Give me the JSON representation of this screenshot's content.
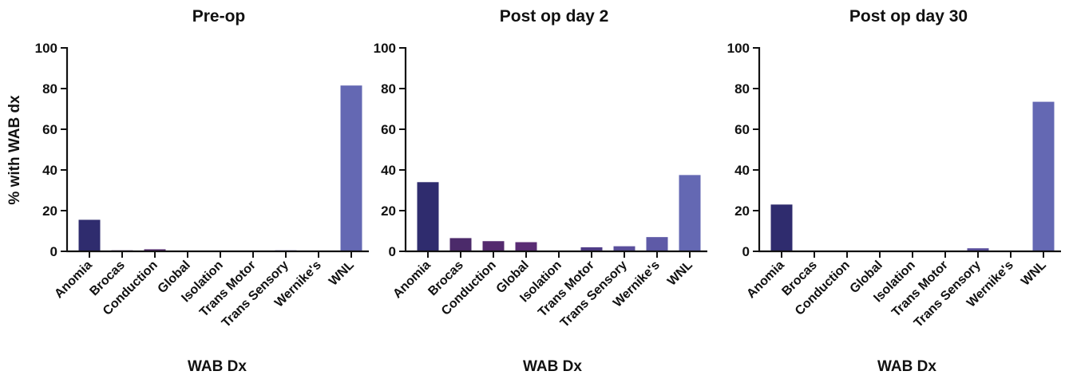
{
  "chart_data": [
    {
      "type": "bar",
      "title": "Pre-op",
      "xlabel": "WAB Dx",
      "ylabel": "% with WAB dx",
      "ylim": [
        0,
        100
      ],
      "yticks": [
        0,
        20,
        40,
        60,
        80,
        100
      ],
      "categories": [
        "Anomia",
        "Brocas",
        "Conduction",
        "Global",
        "Isolation",
        "Trans Motor",
        "Trans Sensory",
        "Wernike's",
        "WNL"
      ],
      "values": [
        15.5,
        0.5,
        1,
        0,
        0,
        0,
        0.5,
        0,
        81.5
      ]
    },
    {
      "type": "bar",
      "title": "Post op day 2",
      "xlabel": "WAB Dx",
      "ylabel": "",
      "ylim": [
        0,
        100
      ],
      "yticks": [
        0,
        20,
        40,
        60,
        80,
        100
      ],
      "categories": [
        "Anomia",
        "Brocas",
        "Conduction",
        "Global",
        "Isolation",
        "Trans Motor",
        "Trans Sensory",
        "Wernike's",
        "WNL"
      ],
      "values": [
        34,
        6.5,
        5,
        4.5,
        0,
        2,
        2.5,
        7,
        37.5
      ]
    },
    {
      "type": "bar",
      "title": "Post op day 30",
      "xlabel": "WAB Dx",
      "ylabel": "",
      "ylim": [
        0,
        100
      ],
      "yticks": [
        0,
        20,
        40,
        60,
        80,
        100
      ],
      "categories": [
        "Anomia",
        "Brocas",
        "Conduction",
        "Global",
        "Isolation",
        "Trans Motor",
        "Trans Sensory",
        "Wernike's",
        "WNL"
      ],
      "values": [
        23,
        0,
        0,
        0,
        0,
        0,
        1.5,
        0,
        73.5
      ]
    }
  ],
  "colors": {
    "bars": [
      "#2f2c6e",
      "#4b2a6a",
      "#542a6e",
      "#5a2c74",
      "#54307a",
      "#4f3c87",
      "#5a4f9c",
      "#5e5aa7",
      "#6468b3"
    ],
    "axis": "#111111"
  }
}
